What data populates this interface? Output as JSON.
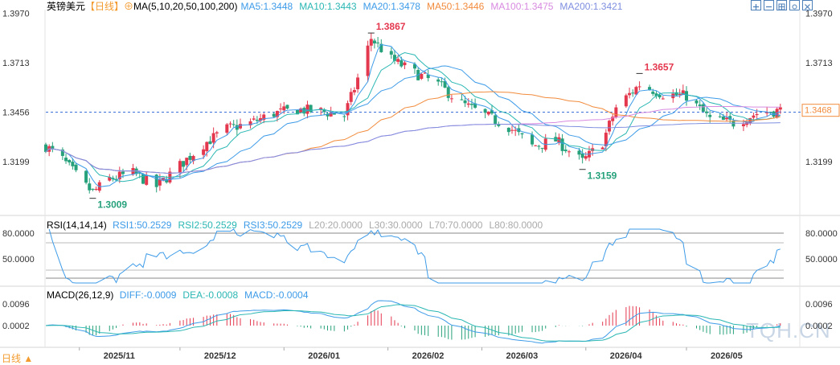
{
  "header": {
    "symbol": "英镑美元",
    "period": "【日线】",
    "ma_label": "MA(5,10,20,50,100,200)",
    "ma_values": [
      {
        "text": "MA5:1.3448",
        "color": "#3d9be8"
      },
      {
        "text": "MA10:1.3443",
        "color": "#2ab7b3"
      },
      {
        "text": "MA20:1.3478",
        "color": "#3d9be8"
      },
      {
        "text": "MA50:1.3446",
        "color": "#f28b3c"
      },
      {
        "text": "MA100:1.3475",
        "color": "#d88ae0"
      },
      {
        "text": "MA200:1.3421",
        "color": "#7f8fe0"
      }
    ]
  },
  "toolbar": {
    "icons": [
      "zoom-in-icon",
      "zoom-out-icon",
      "grid-icon",
      "settings-icon",
      "close-icon"
    ]
  },
  "rsi": {
    "label": "RSI(14,14,14)",
    "values": [
      {
        "text": "RSI1:50.2529",
        "color": "#3d9be8"
      },
      {
        "text": "RSI2:50.2529",
        "color": "#2ab7b3"
      },
      {
        "text": "RSI3:50.2529",
        "color": "#3d9be8"
      },
      {
        "text": "L20:20.0000",
        "color": "#aaaaaa"
      },
      {
        "text": "L30:30.0000",
        "color": "#aaaaaa"
      },
      {
        "text": "L70:70.0000",
        "color": "#aaaaaa"
      },
      {
        "text": "L80:80.0000",
        "color": "#aaaaaa"
      }
    ],
    "ticks": [
      "80.0000",
      "50.0000"
    ]
  },
  "macd": {
    "label": "MACD(26,12,9)",
    "values": [
      {
        "text": "DIFF:-0.0009",
        "color": "#3d9be8"
      },
      {
        "text": "DEA:-0.0008",
        "color": "#2ab7b3"
      },
      {
        "text": "MACD:-0.0004",
        "color": "#3d9be8"
      }
    ],
    "ticks": [
      "0.0096",
      "0.0002"
    ]
  },
  "price_axis": {
    "ticks": [
      "1.3970",
      "1.3713",
      "1.3456",
      "1.3199"
    ],
    "current": "1.3468"
  },
  "time_axis": [
    "2025/11",
    "2025/12",
    "2026/01",
    "2026/02",
    "2026/03",
    "2026/04",
    "2026/05"
  ],
  "period_selector": "日线 ▲",
  "watermark": "TQH.CN",
  "annotations": {
    "high": "1.3867",
    "low": "1.3009",
    "mid_low": "1.3159",
    "mid_high": "1.3657"
  },
  "colors": {
    "up": "#e4384f",
    "down": "#26a17b",
    "current": "#f28b3c"
  },
  "chart_data": {
    "type": "candlestick",
    "title": "英镑美元 日线",
    "ylim": [
      1.292,
      1.398
    ],
    "x_range": [
      "2025-10-22",
      "2026-05-30"
    ],
    "key_points": [
      {
        "date": "2025-11-05",
        "value": 1.3009,
        "label": "1.3009"
      },
      {
        "date": "2026-01-27",
        "value": 1.3867,
        "label": "1.3867"
      },
      {
        "date": "2026-03-31",
        "value": 1.3159,
        "label": "1.3159"
      },
      {
        "date": "2026-04-17",
        "value": 1.3657,
        "label": "1.3657"
      }
    ],
    "close_path": [
      [
        "2025-10-22",
        1.328
      ],
      [
        "2025-10-27",
        1.321
      ],
      [
        "2025-11-03",
        1.307
      ],
      [
        "2025-11-05",
        1.304
      ],
      [
        "2025-11-10",
        1.311
      ],
      [
        "2025-11-17",
        1.314
      ],
      [
        "2025-11-24",
        1.307
      ],
      [
        "2025-12-01",
        1.318
      ],
      [
        "2025-12-08",
        1.329
      ],
      [
        "2025-12-15",
        1.337
      ],
      [
        "2025-12-22",
        1.34
      ],
      [
        "2025-12-29",
        1.345
      ],
      [
        "2026-01-05",
        1.347
      ],
      [
        "2026-01-12",
        1.346
      ],
      [
        "2026-01-19",
        1.344
      ],
      [
        "2026-01-22",
        1.358
      ],
      [
        "2026-01-27",
        1.384
      ],
      [
        "2026-02-02",
        1.373
      ],
      [
        "2026-02-09",
        1.366
      ],
      [
        "2026-02-16",
        1.36
      ],
      [
        "2026-02-23",
        1.35
      ],
      [
        "2026-03-02",
        1.344
      ],
      [
        "2026-03-09",
        1.338
      ],
      [
        "2026-03-16",
        1.328
      ],
      [
        "2026-03-23",
        1.331
      ],
      [
        "2026-03-31",
        1.32
      ],
      [
        "2026-04-06",
        1.33
      ],
      [
        "2026-04-10",
        1.348
      ],
      [
        "2026-04-17",
        1.36
      ],
      [
        "2026-04-24",
        1.355
      ],
      [
        "2026-05-01",
        1.354
      ],
      [
        "2026-05-08",
        1.342
      ],
      [
        "2026-05-15",
        1.34
      ],
      [
        "2026-05-22",
        1.345
      ],
      [
        "2026-05-30",
        1.3468
      ]
    ],
    "series": [
      {
        "name": "MA5",
        "value": 1.3448,
        "color": "#3d9be8"
      },
      {
        "name": "MA10",
        "value": 1.3443,
        "color": "#2ab7b3"
      },
      {
        "name": "MA20",
        "value": 1.3478,
        "color": "#3d9be8"
      },
      {
        "name": "MA50",
        "value": 1.3446,
        "color": "#f28b3c"
      },
      {
        "name": "MA100",
        "value": 1.3475,
        "color": "#d88ae0"
      },
      {
        "name": "MA200",
        "value": 1.3421,
        "color": "#7f8fe0"
      }
    ]
  }
}
